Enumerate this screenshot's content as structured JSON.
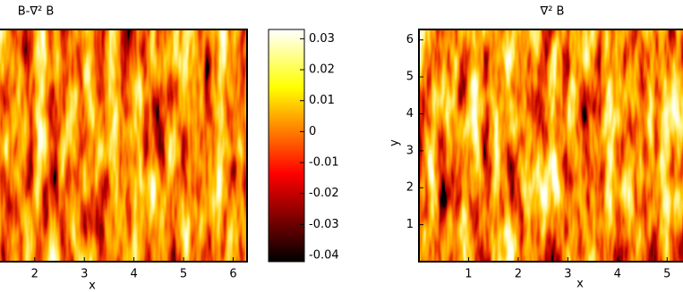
{
  "chart_data": [
    {
      "type": "heatmap",
      "title": "B-∇² B",
      "xlabel": "x",
      "xlim": [
        1.3,
        6.28
      ],
      "xticks": [
        2,
        3,
        4,
        5,
        6
      ],
      "colorbar": {
        "lim": [
          -0.042,
          0.033
        ],
        "ticks": [
          -0.04,
          -0.03,
          -0.02,
          -0.01,
          0,
          0.01,
          0.02,
          0.03
        ]
      }
    },
    {
      "type": "heatmap",
      "title": "∇² B",
      "xlabel": "x",
      "ylabel": "y",
      "xlim": [
        0,
        5.32
      ],
      "xticks": [
        1,
        2,
        3,
        4,
        5
      ],
      "ylim": [
        0,
        6.283
      ],
      "yticks": [
        1,
        2,
        3,
        4,
        5,
        6
      ]
    }
  ]
}
